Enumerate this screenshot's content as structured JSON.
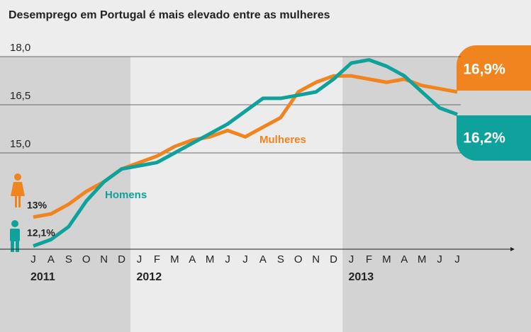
{
  "chart_data": {
    "type": "line",
    "title": "Desemprego em Portugal é mais elevado entre as mulheres",
    "categories": [
      "J",
      "A",
      "S",
      "O",
      "N",
      "D",
      "J",
      "F",
      "M",
      "A",
      "M",
      "J",
      "J",
      "A",
      "S",
      "O",
      "N",
      "D",
      "J",
      "F",
      "M",
      "A",
      "M",
      "J",
      "J"
    ],
    "years": [
      "2011",
      "2012",
      "2013"
    ],
    "series": [
      {
        "name": "Mulheres",
        "color": "#f0841f",
        "values": [
          13.0,
          13.1,
          13.4,
          13.8,
          14.1,
          14.5,
          14.7,
          14.9,
          15.2,
          15.4,
          15.5,
          15.7,
          15.5,
          15.8,
          16.1,
          16.9,
          17.2,
          17.4,
          17.4,
          17.3,
          17.2,
          17.3,
          17.1,
          17.0,
          16.9
        ],
        "value_labels": [
          "13%",
          null,
          null,
          null,
          null,
          null,
          null,
          null,
          null,
          null,
          null,
          null,
          null,
          null,
          null,
          null,
          null,
          null,
          null,
          null,
          null,
          null,
          null,
          null,
          "16,9%"
        ]
      },
      {
        "name": "Homens",
        "color": "#0fa19b",
        "values": [
          12.1,
          12.3,
          12.7,
          13.5,
          14.1,
          14.5,
          14.6,
          14.7,
          15.0,
          15.3,
          15.6,
          15.9,
          16.3,
          16.7,
          16.7,
          16.8,
          16.9,
          17.3,
          17.8,
          17.9,
          17.7,
          17.4,
          16.9,
          16.4,
          16.2
        ],
        "value_labels": [
          "12,1%",
          null,
          null,
          null,
          null,
          null,
          null,
          null,
          null,
          null,
          null,
          null,
          null,
          null,
          null,
          null,
          null,
          null,
          null,
          null,
          null,
          null,
          null,
          null,
          "16,2%"
        ]
      }
    ],
    "ylim": [
      12,
      18
    ],
    "yticks": [
      {
        "value": 18,
        "label": "18,0"
      },
      {
        "value": 16.5,
        "label": "16,5"
      },
      {
        "value": 15,
        "label": "15,0"
      }
    ],
    "grid": true
  }
}
